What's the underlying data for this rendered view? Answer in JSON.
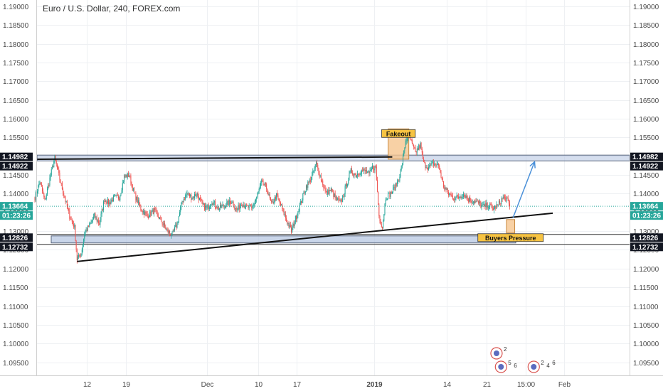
{
  "chart_data": {
    "type": "candlestick",
    "title": "Euro / U.S. Dollar, 240, FOREX.com",
    "xlabel": "",
    "ylabel": "",
    "ylim": [
      1.0915,
      1.1917
    ],
    "grid": true,
    "y_ticks": [
      "1.19000",
      "1.18500",
      "1.18000",
      "1.17500",
      "1.17000",
      "1.16500",
      "1.16000",
      "1.15500",
      "1.15000",
      "1.14500",
      "1.14000",
      "1.13500",
      "1.13000",
      "1.12500",
      "1.12000",
      "1.11500",
      "1.11000",
      "1.10500",
      "1.10000",
      "1.09500"
    ],
    "y_tick_values": [
      1.19,
      1.185,
      1.18,
      1.175,
      1.17,
      1.165,
      1.16,
      1.155,
      1.15,
      1.145,
      1.14,
      1.135,
      1.13,
      1.125,
      1.12,
      1.115,
      1.11,
      1.105,
      1.1,
      1.095
    ],
    "x_ticks": [
      {
        "label": "12",
        "bar": 63,
        "bold": false
      },
      {
        "label": "19",
        "bar": 110,
        "bold": false
      },
      {
        "label": "Dec",
        "bar": 208,
        "bold": false
      },
      {
        "label": "10",
        "bar": 270,
        "bold": false
      },
      {
        "label": "17",
        "bar": 316,
        "bold": false
      },
      {
        "label": "2019",
        "bar": 410,
        "bold": true
      },
      {
        "label": "14",
        "bar": 498,
        "bold": false
      },
      {
        "label": "21",
        "bar": 546,
        "bold": false
      },
      {
        "label": "15:00",
        "bar": 593,
        "bold": false
      },
      {
        "label": "Feb",
        "bar": 640,
        "bold": false
      }
    ],
    "price_badges": [
      {
        "label": "1.14982",
        "value": 1.14982,
        "color": "#131722"
      },
      {
        "label": "1.14922",
        "value": 1.14922,
        "color": "#131722"
      },
      {
        "label": "1.13664",
        "value": 1.13664,
        "color": "#26a69a"
      },
      {
        "label": "1.12826",
        "value": 1.12826,
        "color": "#131722"
      },
      {
        "label": "1.12732",
        "value": 1.12732,
        "color": "#131722"
      }
    ],
    "countdown": "01:23:26",
    "last_price": 1.13664,
    "resistance": [
      1.14922,
      1.14982
    ],
    "support": [
      1.12732,
      1.12826
    ],
    "upper_trendline": {
      "from": {
        "bar": 3,
        "price": 1.1492
      },
      "to": {
        "bar": 432,
        "price": 1.1498
      }
    },
    "lower_trendline": {
      "from": {
        "bar": 51,
        "price": 1.1219
      },
      "to": {
        "bar": 626,
        "price": 1.1348
      }
    },
    "annotations": [
      {
        "text": "Fakeout",
        "box": {
          "bar0": 427,
          "bar1": 452,
          "low": 1.1492,
          "high": 1.1573
        }
      },
      {
        "text": "Buyers Pressure",
        "box": {
          "bar0": 570,
          "bar1": 580,
          "low": 1.1295,
          "high": 1.1331
        }
      }
    ],
    "projection": {
      "from": {
        "bar": 578,
        "price": 1.1336
      },
      "to": {
        "bar": 604,
        "price": 1.1485
      }
    },
    "keypoints": [
      {
        "bar": 0,
        "price": 1.139
      },
      {
        "bar": 6,
        "price": 1.1432
      },
      {
        "bar": 12,
        "price": 1.138
      },
      {
        "bar": 18,
        "price": 1.144
      },
      {
        "bar": 24,
        "price": 1.1495
      },
      {
        "bar": 30,
        "price": 1.144
      },
      {
        "bar": 36,
        "price": 1.139
      },
      {
        "bar": 42,
        "price": 1.134
      },
      {
        "bar": 48,
        "price": 1.131
      },
      {
        "bar": 51,
        "price": 1.1225
      },
      {
        "bar": 56,
        "price": 1.124
      },
      {
        "bar": 60,
        "price": 1.1295
      },
      {
        "bar": 66,
        "price": 1.1315
      },
      {
        "bar": 72,
        "price": 1.134
      },
      {
        "bar": 78,
        "price": 1.132
      },
      {
        "bar": 84,
        "price": 1.1385
      },
      {
        "bar": 90,
        "price": 1.1375
      },
      {
        "bar": 96,
        "price": 1.139
      },
      {
        "bar": 102,
        "price": 1.139
      },
      {
        "bar": 108,
        "price": 1.1445
      },
      {
        "bar": 114,
        "price": 1.145
      },
      {
        "bar": 120,
        "price": 1.14
      },
      {
        "bar": 128,
        "price": 1.136
      },
      {
        "bar": 136,
        "price": 1.134
      },
      {
        "bar": 144,
        "price": 1.1355
      },
      {
        "bar": 152,
        "price": 1.133
      },
      {
        "bar": 160,
        "price": 1.13
      },
      {
        "bar": 166,
        "price": 1.129
      },
      {
        "bar": 172,
        "price": 1.132
      },
      {
        "bar": 178,
        "price": 1.138
      },
      {
        "bar": 184,
        "price": 1.14
      },
      {
        "bar": 190,
        "price": 1.139
      },
      {
        "bar": 196,
        "price": 1.14
      },
      {
        "bar": 202,
        "price": 1.137
      },
      {
        "bar": 208,
        "price": 1.136
      },
      {
        "bar": 214,
        "price": 1.138
      },
      {
        "bar": 222,
        "price": 1.136
      },
      {
        "bar": 230,
        "price": 1.137
      },
      {
        "bar": 238,
        "price": 1.138
      },
      {
        "bar": 244,
        "price": 1.1355
      },
      {
        "bar": 250,
        "price": 1.1375
      },
      {
        "bar": 256,
        "price": 1.1365
      },
      {
        "bar": 262,
        "price": 1.136
      },
      {
        "bar": 268,
        "price": 1.139
      },
      {
        "bar": 274,
        "price": 1.143
      },
      {
        "bar": 280,
        "price": 1.1415
      },
      {
        "bar": 286,
        "price": 1.137
      },
      {
        "bar": 292,
        "price": 1.1395
      },
      {
        "bar": 298,
        "price": 1.1365
      },
      {
        "bar": 304,
        "price": 1.133
      },
      {
        "bar": 310,
        "price": 1.13
      },
      {
        "bar": 316,
        "price": 1.134
      },
      {
        "bar": 322,
        "price": 1.138
      },
      {
        "bar": 328,
        "price": 1.142
      },
      {
        "bar": 334,
        "price": 1.144
      },
      {
        "bar": 340,
        "price": 1.148
      },
      {
        "bar": 346,
        "price": 1.144
      },
      {
        "bar": 352,
        "price": 1.14
      },
      {
        "bar": 358,
        "price": 1.141
      },
      {
        "bar": 364,
        "price": 1.1385
      },
      {
        "bar": 370,
        "price": 1.1375
      },
      {
        "bar": 376,
        "price": 1.142
      },
      {
        "bar": 382,
        "price": 1.146
      },
      {
        "bar": 388,
        "price": 1.145
      },
      {
        "bar": 394,
        "price": 1.146
      },
      {
        "bar": 400,
        "price": 1.146
      },
      {
        "bar": 404,
        "price": 1.145
      },
      {
        "bar": 408,
        "price": 1.147
      },
      {
        "bar": 412,
        "price": 1.147
      },
      {
        "bar": 416,
        "price": 1.134
      },
      {
        "bar": 420,
        "price": 1.131
      },
      {
        "bar": 424,
        "price": 1.139
      },
      {
        "bar": 430,
        "price": 1.14
      },
      {
        "bar": 436,
        "price": 1.142
      },
      {
        "bar": 440,
        "price": 1.144
      },
      {
        "bar": 444,
        "price": 1.148
      },
      {
        "bar": 448,
        "price": 1.154
      },
      {
        "bar": 452,
        "price": 1.156
      },
      {
        "bar": 456,
        "price": 1.153
      },
      {
        "bar": 460,
        "price": 1.151
      },
      {
        "bar": 466,
        "price": 1.153
      },
      {
        "bar": 470,
        "price": 1.148
      },
      {
        "bar": 476,
        "price": 1.147
      },
      {
        "bar": 482,
        "price": 1.148
      },
      {
        "bar": 488,
        "price": 1.1475
      },
      {
        "bar": 494,
        "price": 1.142
      },
      {
        "bar": 500,
        "price": 1.14
      },
      {
        "bar": 506,
        "price": 1.139
      },
      {
        "bar": 512,
        "price": 1.139
      },
      {
        "bar": 518,
        "price": 1.14
      },
      {
        "bar": 524,
        "price": 1.1385
      },
      {
        "bar": 530,
        "price": 1.138
      },
      {
        "bar": 536,
        "price": 1.1375
      },
      {
        "bar": 542,
        "price": 1.1365
      },
      {
        "bar": 548,
        "price": 1.137
      },
      {
        "bar": 554,
        "price": 1.136
      },
      {
        "bar": 560,
        "price": 1.137
      },
      {
        "bar": 566,
        "price": 1.139
      },
      {
        "bar": 570,
        "price": 1.1385
      },
      {
        "bar": 574,
        "price": 1.1366
      }
    ],
    "events": [
      {
        "labels": [
          "2"
        ],
        "bar": 558,
        "row": 0
      },
      {
        "labels": [
          "5",
          "6"
        ],
        "bar": 560,
        "row": 1
      },
      {
        "labels": [
          "2",
          "4",
          "6"
        ],
        "bar": 603,
        "row": 1
      }
    ]
  }
}
